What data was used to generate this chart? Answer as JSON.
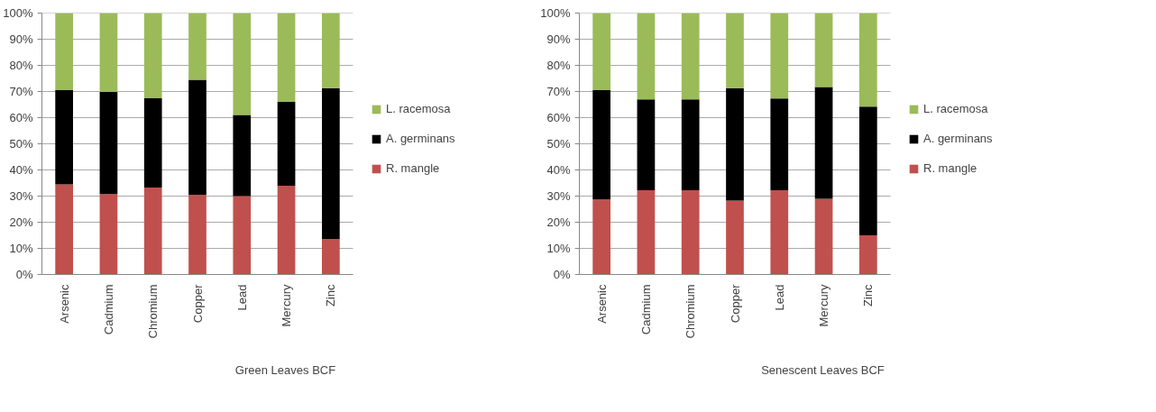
{
  "chart_data": [
    {
      "type": "bar",
      "stacked": true,
      "xlabel": "Green Leaves BCF",
      "categories": [
        "Arsenic",
        "Cadmium",
        "Chromium",
        "Copper",
        "Lead",
        "Mercury",
        "Zinc"
      ],
      "series": [
        {
          "name": "R. mangle",
          "color": "#c0504d",
          "values": [
            34.5,
            30.8,
            33.3,
            30.5,
            30,
            34,
            13.5
          ]
        },
        {
          "name": "A. germinans",
          "color": "#000000",
          "values": [
            36,
            39,
            34.1,
            44,
            31,
            32,
            57.8
          ]
        },
        {
          "name": "L. racemosa",
          "color": "#9bbb59",
          "values": [
            29.5,
            30.2,
            32.6,
            25.5,
            39,
            34,
            28.7
          ]
        }
      ],
      "ylim": [
        0,
        100
      ],
      "yticks": [
        {
          "value": 0,
          "label": "0%"
        },
        {
          "value": 10,
          "label": "10%"
        },
        {
          "value": 20,
          "label": "20%"
        },
        {
          "value": 30,
          "label": "30%"
        },
        {
          "value": 40,
          "label": "40%"
        },
        {
          "value": 50,
          "label": "50%"
        },
        {
          "value": 60,
          "label": "60%"
        },
        {
          "value": 70,
          "label": "70%"
        },
        {
          "value": 80,
          "label": "80%"
        },
        {
          "value": 90,
          "label": "90%"
        },
        {
          "value": 100,
          "label": "100%"
        }
      ],
      "grid": "y",
      "legend": "right"
    },
    {
      "type": "bar",
      "stacked": true,
      "xlabel": "Senescent Leaves BCF",
      "categories": [
        "Arsenic",
        "Cadmium",
        "Chromium",
        "Copper",
        "Lead",
        "Mercury",
        "Zinc"
      ],
      "series": [
        {
          "name": "R. mangle",
          "color": "#c0504d",
          "values": [
            28.7,
            32.2,
            32.2,
            28.3,
            32.2,
            29,
            15
          ]
        },
        {
          "name": "A. germinans",
          "color": "#000000",
          "values": [
            41.8,
            34.8,
            34.8,
            43,
            35.1,
            42.7,
            49.2
          ]
        },
        {
          "name": "L. racemosa",
          "color": "#9bbb59",
          "values": [
            29.5,
            33,
            33,
            28.7,
            32.7,
            28.3,
            35.8
          ]
        }
      ],
      "ylim": [
        0,
        100
      ],
      "yticks": [
        {
          "value": 0,
          "label": "0%"
        },
        {
          "value": 10,
          "label": "10%"
        },
        {
          "value": 20,
          "label": "20%"
        },
        {
          "value": 30,
          "label": "30%"
        },
        {
          "value": 40,
          "label": "40%"
        },
        {
          "value": 50,
          "label": "50%"
        },
        {
          "value": 60,
          "label": "60%"
        },
        {
          "value": 70,
          "label": "70%"
        },
        {
          "value": 80,
          "label": "80%"
        },
        {
          "value": 90,
          "label": "90%"
        },
        {
          "value": 100,
          "label": "100%"
        }
      ],
      "grid": "y",
      "legend": "right"
    }
  ]
}
